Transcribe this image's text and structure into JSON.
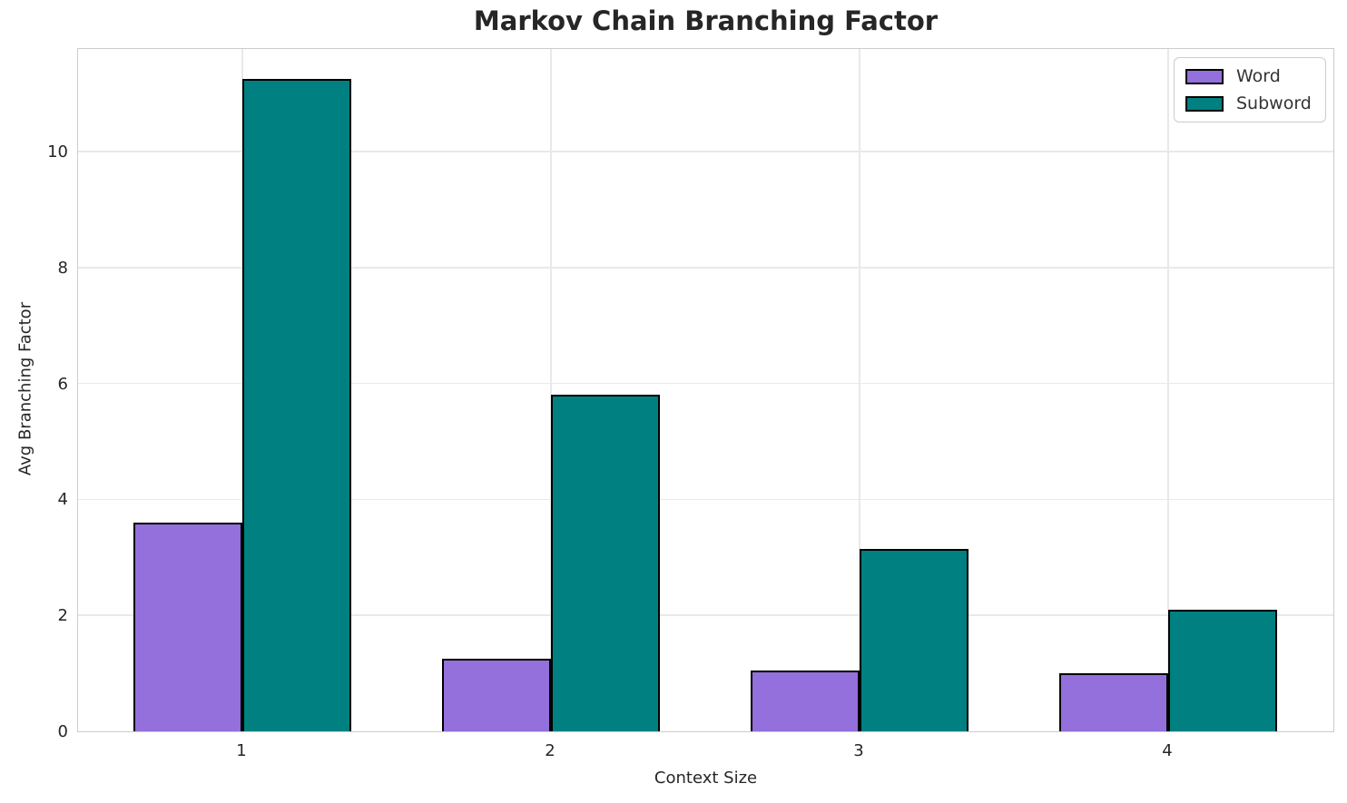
{
  "chart_data": {
    "type": "bar",
    "title": "Markov Chain Branching Factor",
    "xlabel": "Context Size",
    "ylabel": "Avg Branching Factor",
    "categories": [
      "1",
      "2",
      "3",
      "4"
    ],
    "series": [
      {
        "name": "Word",
        "color": "#9370DB",
        "values": [
          3.6,
          1.25,
          1.05,
          1.0
        ]
      },
      {
        "name": "Subword",
        "color": "#008080",
        "values": [
          11.25,
          5.8,
          3.15,
          2.1
        ]
      }
    ],
    "yticks": [
      0,
      2,
      4,
      6,
      8,
      10
    ],
    "ylim": [
      0,
      11.8
    ],
    "bar_edge_color": "#000000",
    "grid": true,
    "grid_color": "#e9e9e9",
    "spine_color": "#cccccc",
    "text_color": "#262626",
    "legend_position": "upper right",
    "legend_labels": [
      "Word",
      "Subword"
    ]
  }
}
